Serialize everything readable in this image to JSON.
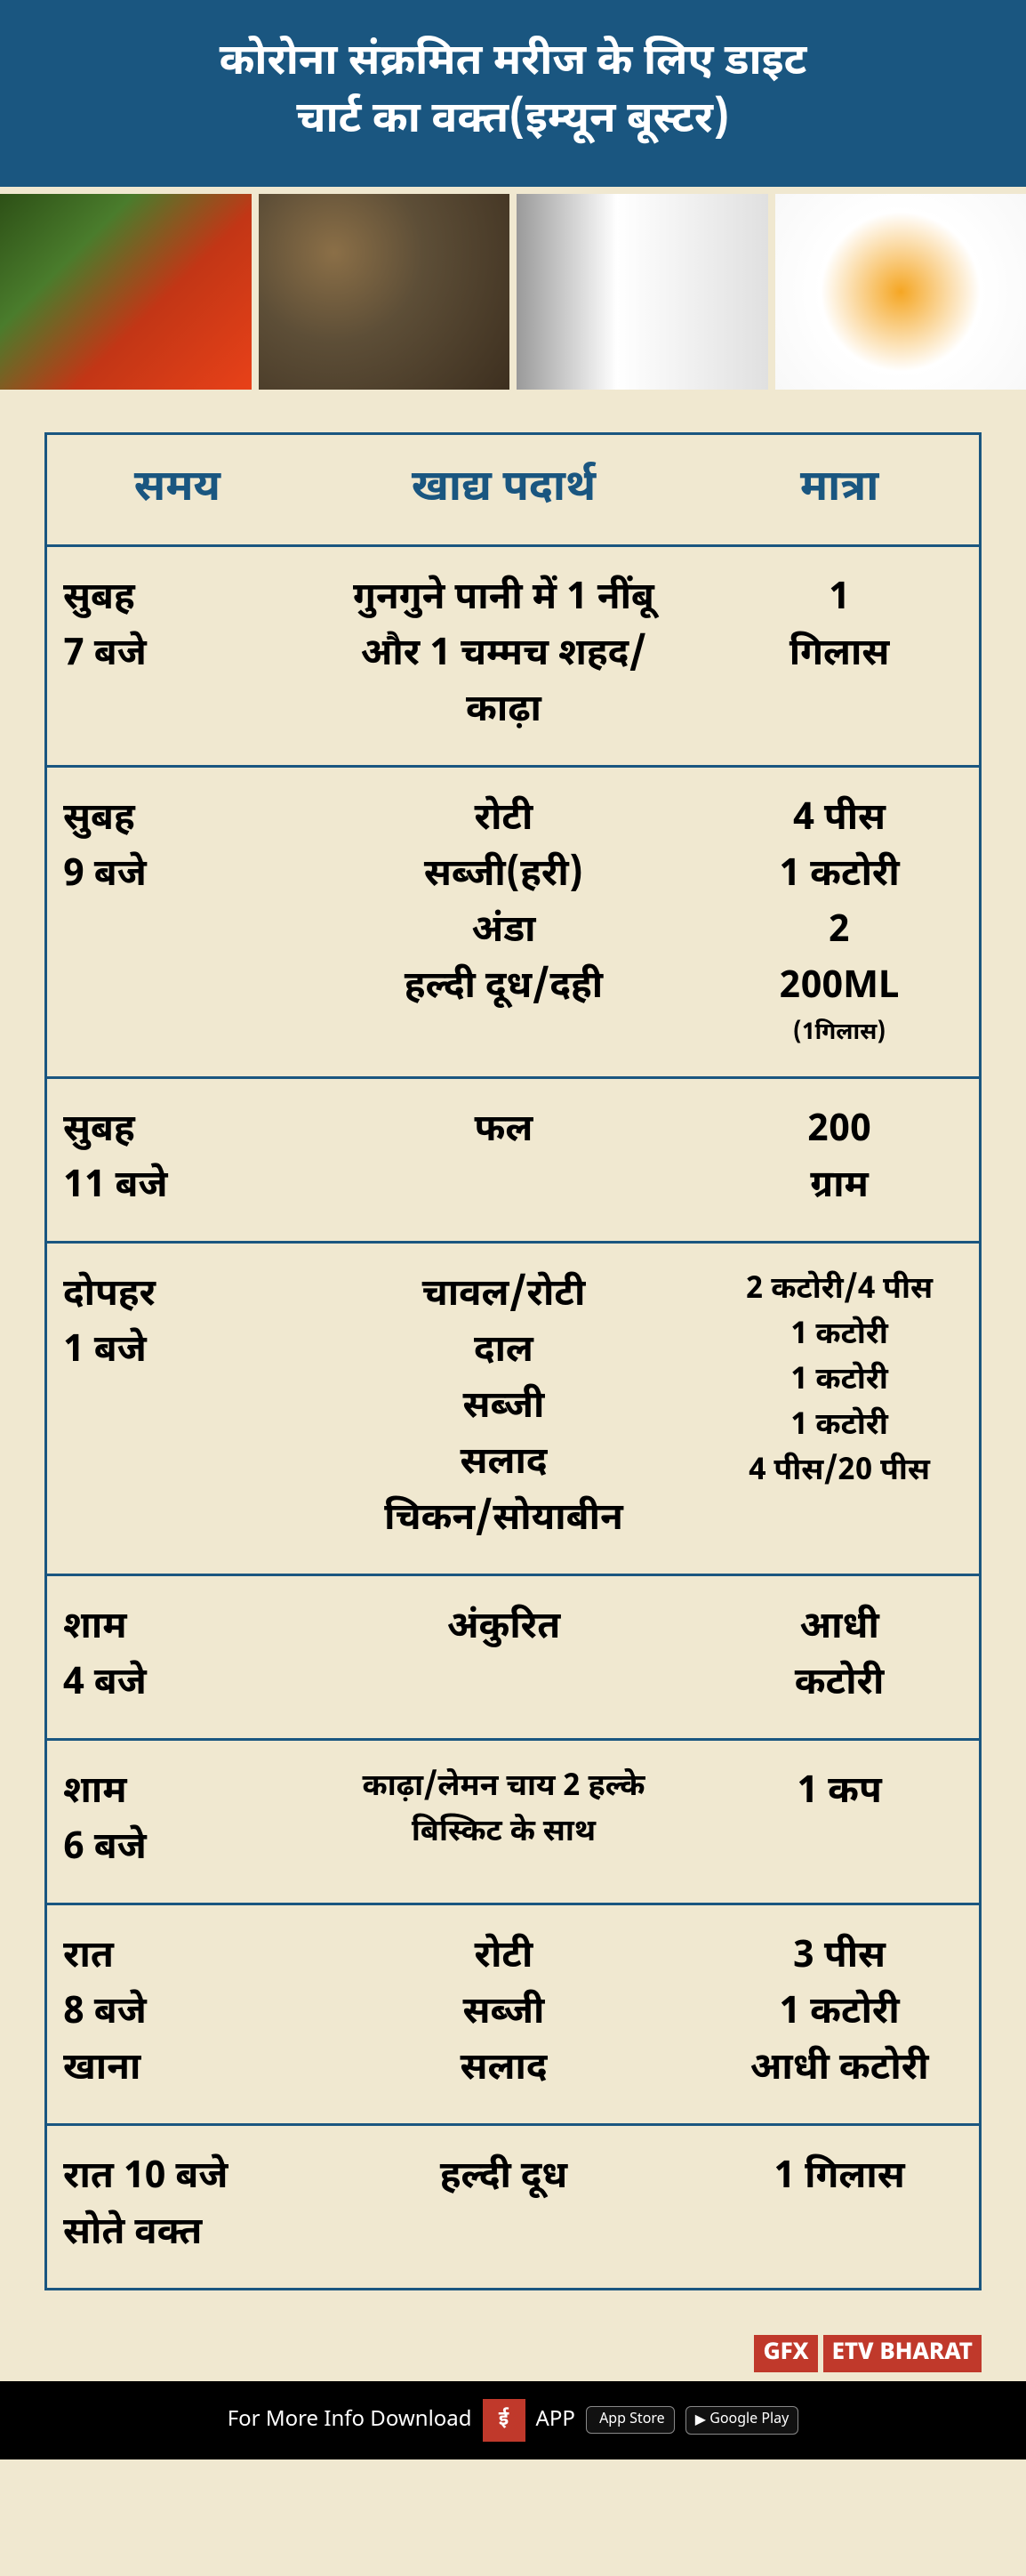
{
  "header": {
    "title_line1": "कोरोना संक्रमित मरीज के लिए डाइट",
    "title_line2": "चार्ट का वक्त(इम्यून बूस्टर)"
  },
  "images": {
    "vegetables": "vegetables-photo",
    "nuts": "nuts-photo",
    "milk": "milk-photo",
    "eggs": "eggs-photo"
  },
  "table": {
    "headers": {
      "time": "समय",
      "food": "खाद्य पदार्थ",
      "quantity": "मात्रा"
    },
    "rows": [
      {
        "time": "सुबह\n7 बजे",
        "food": "गुनगुने पानी में 1 नींबू और 1 चम्मच शहद/ काढ़ा",
        "qty": "1\nगिलास"
      },
      {
        "time": "सुबह\n9 बजे",
        "food": "रोटी\nसब्जी(हरी)\nअंडा\nहल्दी दूध/दही",
        "qty": "4 पीस\n1 कटोरी\n2\n200ML",
        "qty_note": "(1गिलास)"
      },
      {
        "time": "सुबह\n11 बजे",
        "food": "फल",
        "qty": "200\nग्राम"
      },
      {
        "time": "दोपहर\n1 बजे",
        "food": "चावल/रोटी\nदाल\nसब्जी\nसलाद\nचिकन/सोयाबीन",
        "qty": "2 कटोरी/4 पीस\n1 कटोरी\n1 कटोरी\n1 कटोरी\n4 पीस/20 पीस",
        "qty_small": true
      },
      {
        "time": "शाम\n4 बजे",
        "food": "अंकुरित",
        "qty": "आधी\nकटोरी"
      },
      {
        "time": "शाम\n6 बजे",
        "food": "काढ़ा/लेमन चाय 2 हल्के बिस्किट के साथ",
        "food_small": true,
        "qty": "1 कप"
      },
      {
        "time": "रात\n8 बजे\nखाना",
        "food": "रोटी\nसब्जी\nसलाद",
        "qty": "3 पीस\n1 कटोरी\nआधी कटोरी"
      },
      {
        "time": "रात 10 बजे सोते वक्त",
        "food": "हल्दी दूध",
        "qty": "1 गिलास"
      }
    ]
  },
  "gfx": {
    "label1": "GFX",
    "label2": "ETV BHARAT"
  },
  "footer": {
    "text": "For More Info Download",
    "app": "APP",
    "appstore": "App Store",
    "playstore": "Google Play"
  },
  "colors": {
    "header_bg": "#1a5680",
    "header_text": "#ffffff",
    "page_bg": "#f0e8d0",
    "border": "#1a5680",
    "text": "#000000",
    "footer_bg": "#000000",
    "red": "#c0392b"
  }
}
